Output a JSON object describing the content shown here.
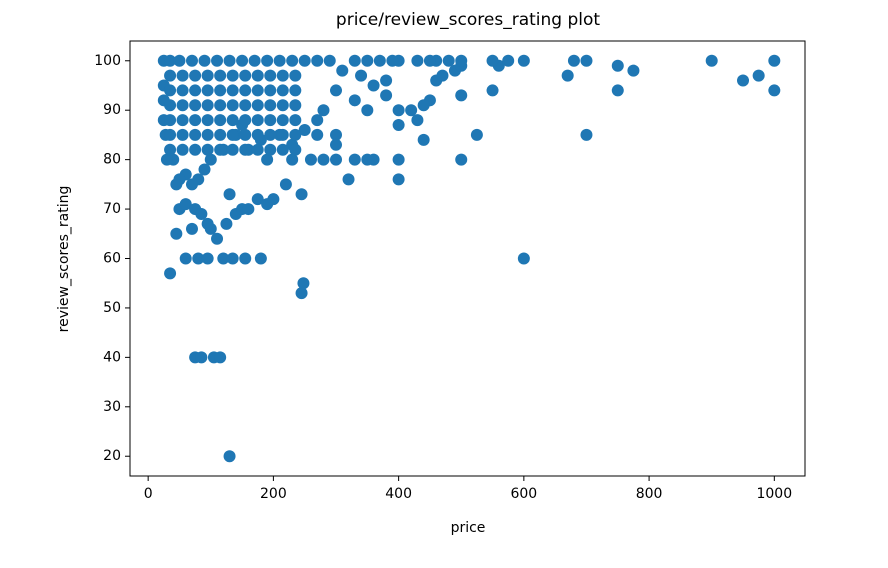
{
  "chart_data": {
    "type": "scatter",
    "title": "price/review_scores_rating plot",
    "x_label": "price",
    "y_label": "review_scores_rating",
    "color": "#1f77b4",
    "x": [
      130,
      75,
      85,
      105,
      115,
      35,
      245,
      248,
      600,
      60,
      80,
      95,
      120,
      135,
      155,
      180,
      45,
      50,
      60,
      75,
      85,
      95,
      110,
      125,
      140,
      150,
      160,
      175,
      190,
      200,
      70,
      100,
      130,
      220,
      245,
      230,
      260,
      280,
      300,
      320,
      330,
      350,
      360,
      400,
      400,
      500,
      525,
      700,
      440,
      300,
      300,
      270,
      400,
      430,
      400,
      420,
      450,
      440,
      500,
      550,
      750,
      1000,
      950,
      975,
      670,
      380,
      460,
      470,
      490,
      500,
      560,
      750,
      775,
      900,
      1000,
      680,
      700,
      600,
      575,
      550,
      500,
      480,
      460,
      450,
      430,
      400,
      390,
      370,
      350,
      330,
      310,
      340,
      360,
      380,
      350,
      330,
      300,
      280,
      270,
      250,
      230,
      210,
      190,
      180,
      160,
      150,
      140,
      120,
      100,
      90,
      80,
      70,
      60,
      50,
      45,
      40,
      30,
      28,
      25,
      25,
      25,
      25,
      35,
      50,
      70,
      90,
      110,
      130,
      150,
      170,
      190,
      210,
      230,
      250,
      270,
      290,
      35,
      55,
      75,
      95,
      115,
      135,
      155,
      175,
      195,
      215,
      235,
      35,
      55,
      75,
      95,
      115,
      135,
      155,
      175,
      195,
      215,
      235,
      35,
      55,
      75,
      95,
      115,
      135,
      155,
      175,
      195,
      215,
      235,
      35,
      55,
      75,
      95,
      115,
      135,
      155,
      175,
      195,
      215,
      235,
      35,
      55,
      75,
      95,
      115,
      135,
      155,
      175,
      195,
      215,
      235,
      35,
      55,
      75,
      95,
      115,
      135,
      155,
      175,
      195,
      215,
      235
    ],
    "values": [
      20,
      40,
      40,
      40,
      40,
      57,
      53,
      55,
      60,
      60,
      60,
      60,
      60,
      60,
      60,
      60,
      65,
      70,
      71,
      70,
      69,
      67,
      64,
      67,
      69,
      70,
      70,
      72,
      71,
      72,
      66,
      66,
      73,
      75,
      73,
      80,
      80,
      80,
      80,
      76,
      80,
      80,
      80,
      80,
      76,
      80,
      85,
      85,
      84,
      85,
      83,
      85,
      87,
      88,
      90,
      90,
      92,
      91,
      93,
      94,
      94,
      94,
      96,
      97,
      97,
      96,
      96,
      97,
      98,
      99,
      99,
      99,
      98,
      100,
      100,
      100,
      100,
      100,
      100,
      100,
      100,
      100,
      100,
      100,
      100,
      100,
      100,
      100,
      100,
      100,
      98,
      97,
      95,
      93,
      90,
      92,
      94,
      90,
      88,
      86,
      83,
      85,
      80,
      84,
      82,
      87,
      85,
      82,
      80,
      78,
      76,
      75,
      77,
      76,
      75,
      80,
      80,
      85,
      88,
      92,
      95,
      100,
      100,
      100,
      100,
      100,
      100,
      100,
      100,
      100,
      100,
      100,
      100,
      100,
      100,
      100,
      97,
      97,
      97,
      97,
      97,
      97,
      97,
      97,
      97,
      97,
      97,
      94,
      94,
      94,
      94,
      94,
      94,
      94,
      94,
      94,
      94,
      94,
      91,
      91,
      91,
      91,
      91,
      91,
      91,
      91,
      91,
      91,
      91,
      88,
      88,
      88,
      88,
      88,
      88,
      88,
      88,
      88,
      88,
      88,
      85,
      85,
      85,
      85,
      85,
      85,
      85,
      85,
      85,
      85,
      85,
      82,
      82,
      82,
      82,
      82,
      82,
      82,
      82,
      82,
      82,
      82
    ],
    "xlim": [
      -29,
      1049
    ],
    "ylim": [
      16,
      104
    ],
    "xticks": [
      0,
      200,
      400,
      600,
      800,
      1000
    ],
    "yticks": [
      20,
      30,
      40,
      50,
      60,
      70,
      80,
      90,
      100
    ]
  }
}
